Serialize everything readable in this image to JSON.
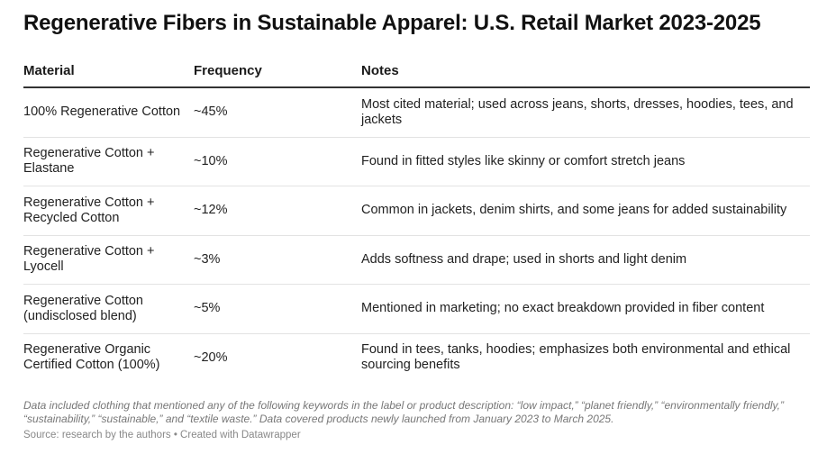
{
  "title": "Regenerative Fibers in Sustainable Apparel: U.S. Retail Market 2023-2025",
  "chart_data": {
    "type": "table",
    "title": "Regenerative Fibers in Sustainable Apparel: U.S. Retail Market 2023-2025",
    "columns": [
      "Material",
      "Frequency",
      "Notes"
    ],
    "rows": [
      {
        "material": "100% Regenerative Cotton",
        "frequency": "~45%",
        "notes": "Most cited material; used across jeans, shorts, dresses, hoodies, tees, and jackets"
      },
      {
        "material": "Regenerative Cotton + Elastane",
        "frequency": "~10%",
        "notes": "Found in fitted styles like skinny or comfort stretch jeans"
      },
      {
        "material": "Regenerative Cotton + Recycled Cotton",
        "frequency": "~12%",
        "notes": "Common in jackets, denim shirts, and some jeans for added sustainability"
      },
      {
        "material": "Regenerative Cotton + Lyocell",
        "frequency": "~3%",
        "notes": "Adds softness and drape; used in shorts and light denim"
      },
      {
        "material": "Regenerative Cotton (undisclosed blend)",
        "frequency": "~5%",
        "notes": "Mentioned in marketing; no exact breakdown provided in fiber content"
      },
      {
        "material": "Regenerative Organic Certified Cotton (100%)",
        "frequency": "~20%",
        "notes": "Found in tees, tanks, hoodies; emphasizes both environmental and ethical sourcing benefits"
      }
    ]
  },
  "footnote": "Data included clothing that mentioned any of the following keywords in the label or product description: “low impact,” “planet friendly,” “environmentally friendly,” “sustainability,” “sustainable,” and “textile waste.” Data covered products newly launched from January 2023 to March 2025.",
  "source": "Source: research by the authors • Created with Datawrapper",
  "colors": {
    "header_rule": "#333333",
    "row_divider": "#e3e3e3",
    "footnote_text": "#777777"
  }
}
